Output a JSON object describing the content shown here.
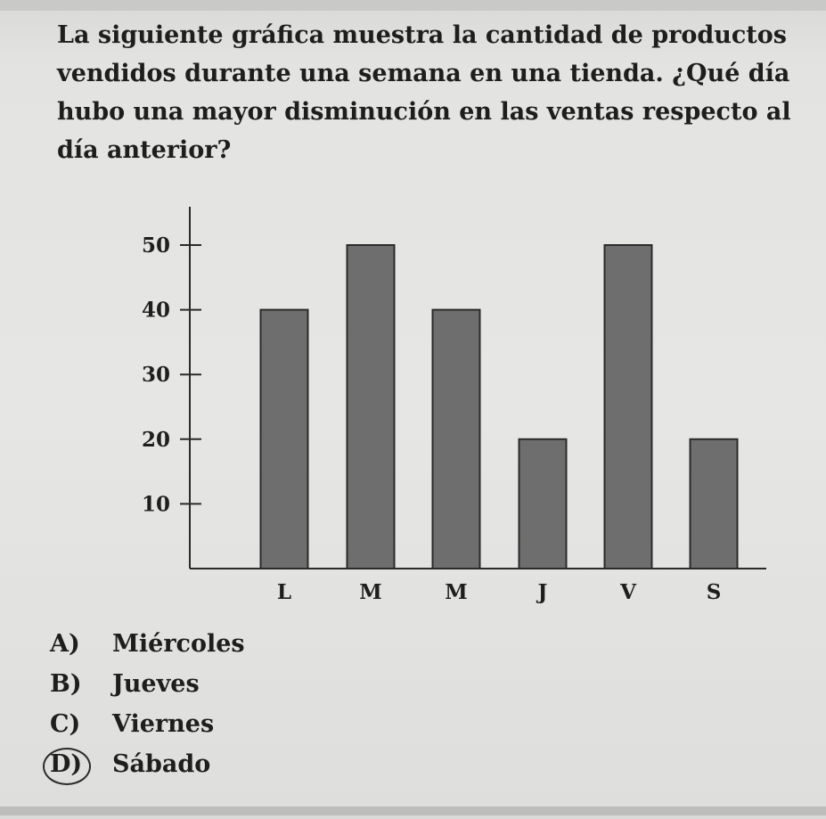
{
  "question": "La siguiente gráfica muestra la cantidad de productos vendidos durante una semana en una tienda. ¿Qué día hubo una mayor disminución en las ventas respecto al día anterior?",
  "chart_data": {
    "type": "bar",
    "categories": [
      "L",
      "M",
      "M",
      "J",
      "V",
      "S"
    ],
    "values": [
      40,
      50,
      40,
      20,
      50,
      20
    ],
    "yticks": [
      "10",
      "20",
      "30",
      "40",
      "50"
    ],
    "ylim": [
      0,
      55
    ],
    "grid": false,
    "bar_color": "#6e6e6e"
  },
  "options": [
    {
      "letter": "A)",
      "text": "Miércoles",
      "circled": false
    },
    {
      "letter": "B)",
      "text": "Jueves",
      "circled": false
    },
    {
      "letter": "C)",
      "text": "Viernes",
      "circled": false
    },
    {
      "letter": "D)",
      "text": "Sábado",
      "circled": true
    }
  ]
}
